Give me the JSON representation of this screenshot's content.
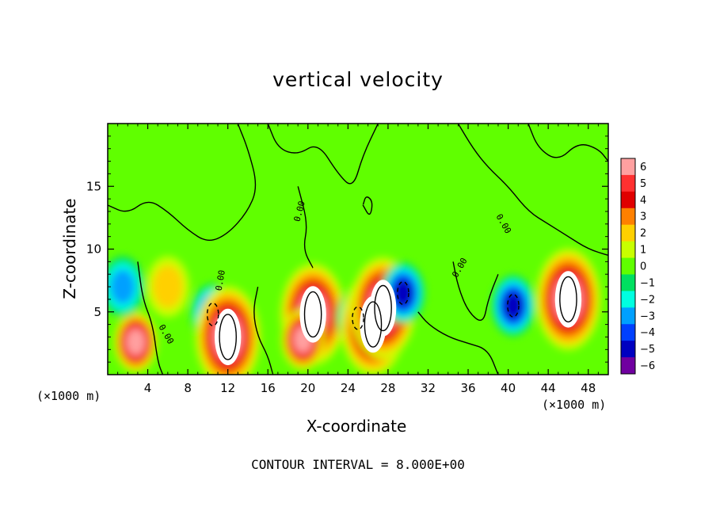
{
  "chart_data": {
    "type": "heatmap",
    "title": "vertical velocity",
    "xlabel": "X-coordinate",
    "ylabel": "Z-coordinate",
    "x_unit_left": "(×1000 m)",
    "x_unit_right": "(×1000 m)",
    "xlim": [
      0,
      50
    ],
    "ylim": [
      0,
      20
    ],
    "xticks": [
      "4",
      "8",
      "12",
      "16",
      "20",
      "24",
      "28",
      "32",
      "36",
      "40",
      "44",
      "48"
    ],
    "yticks": [
      "5",
      "10",
      "15"
    ],
    "colorbar": {
      "range": [
        -6,
        6
      ],
      "labels": [
        "6",
        "5",
        "4",
        "3",
        "2",
        "1",
        "0",
        "−1",
        "−2",
        "−3",
        "−4",
        "−5",
        "−6"
      ],
      "colors": [
        "#ffa0a0",
        "#ff3030",
        "#e00000",
        "#ff8000",
        "#ffd000",
        "#c8ff00",
        "#60ff00",
        "#00e060",
        "#00ffe0",
        "#00a0ff",
        "#0040ff",
        "#0000c0",
        "#7000a0"
      ]
    },
    "contour_labels": [
      "0.00",
      "0.00",
      "0.00",
      "0.00",
      "0.00"
    ],
    "footer": "CONTOUR INTERVAL = 8.000E+00",
    "features": [
      {
        "x": 2.8,
        "z": 2.6,
        "w": 6
      },
      {
        "x": 10.5,
        "z": 4.8,
        "w": -5
      },
      {
        "x": 12.0,
        "z": 3.0,
        "w": 7
      },
      {
        "x": 20.5,
        "z": 4.8,
        "w": 8
      },
      {
        "x": 19.5,
        "z": 2.8,
        "w": 6
      },
      {
        "x": 25.0,
        "z": 4.5,
        "w": -5
      },
      {
        "x": 26.5,
        "z": 4.0,
        "w": 7
      },
      {
        "x": 27.5,
        "z": 5.3,
        "w": 7
      },
      {
        "x": 29.5,
        "z": 6.5,
        "w": -5
      },
      {
        "x": 40.5,
        "z": 5.5,
        "w": -5
      },
      {
        "x": 46.0,
        "z": 6.0,
        "w": 8
      },
      {
        "x": 6.0,
        "z": 7.0,
        "w": 2
      },
      {
        "x": 1.5,
        "z": 7.0,
        "w": -3
      }
    ]
  }
}
